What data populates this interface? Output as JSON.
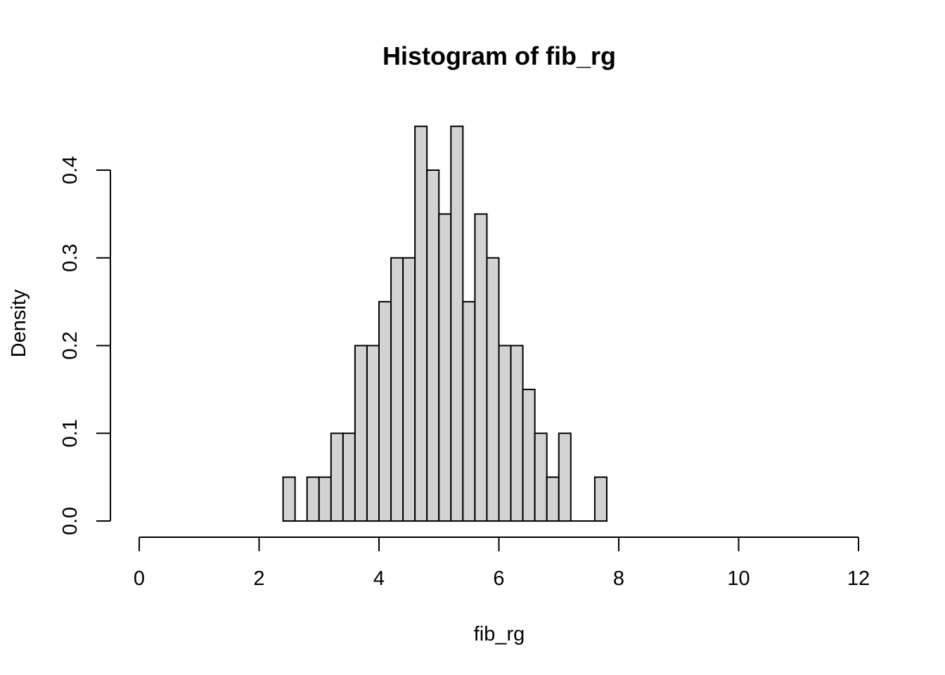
{
  "chart_data": {
    "type": "bar",
    "title": "Histogram of fib_rg",
    "xlabel": "fib_rg",
    "ylabel": "Density",
    "xlim": [
      0,
      12
    ],
    "ylim": [
      0,
      0.45
    ],
    "x_ticks": [
      0,
      2,
      4,
      6,
      8,
      10,
      12
    ],
    "y_ticks": [
      0.0,
      0.1,
      0.2,
      0.3,
      0.4
    ],
    "y_tick_labels": [
      "0.0",
      "0.1",
      "0.2",
      "0.3",
      "0.4"
    ],
    "bin_width": 0.2,
    "bin_starts": [
      2.4,
      2.6,
      2.8,
      3.0,
      3.2,
      3.4,
      3.6,
      3.8,
      4.0,
      4.2,
      4.4,
      4.6,
      4.8,
      5.0,
      5.2,
      5.4,
      5.6,
      5.8,
      6.0,
      6.2,
      6.4,
      6.6,
      6.8,
      7.0,
      7.2,
      7.4,
      7.6
    ],
    "values": [
      0.05,
      0.0,
      0.05,
      0.05,
      0.1,
      0.1,
      0.2,
      0.2,
      0.25,
      0.3,
      0.3,
      0.45,
      0.4,
      0.35,
      0.45,
      0.25,
      0.35,
      0.3,
      0.2,
      0.2,
      0.15,
      0.1,
      0.05,
      0.1,
      0.0,
      0.0,
      0.05
    ],
    "bar_color": "#d3d3d3",
    "grid": false,
    "legend": "none"
  }
}
